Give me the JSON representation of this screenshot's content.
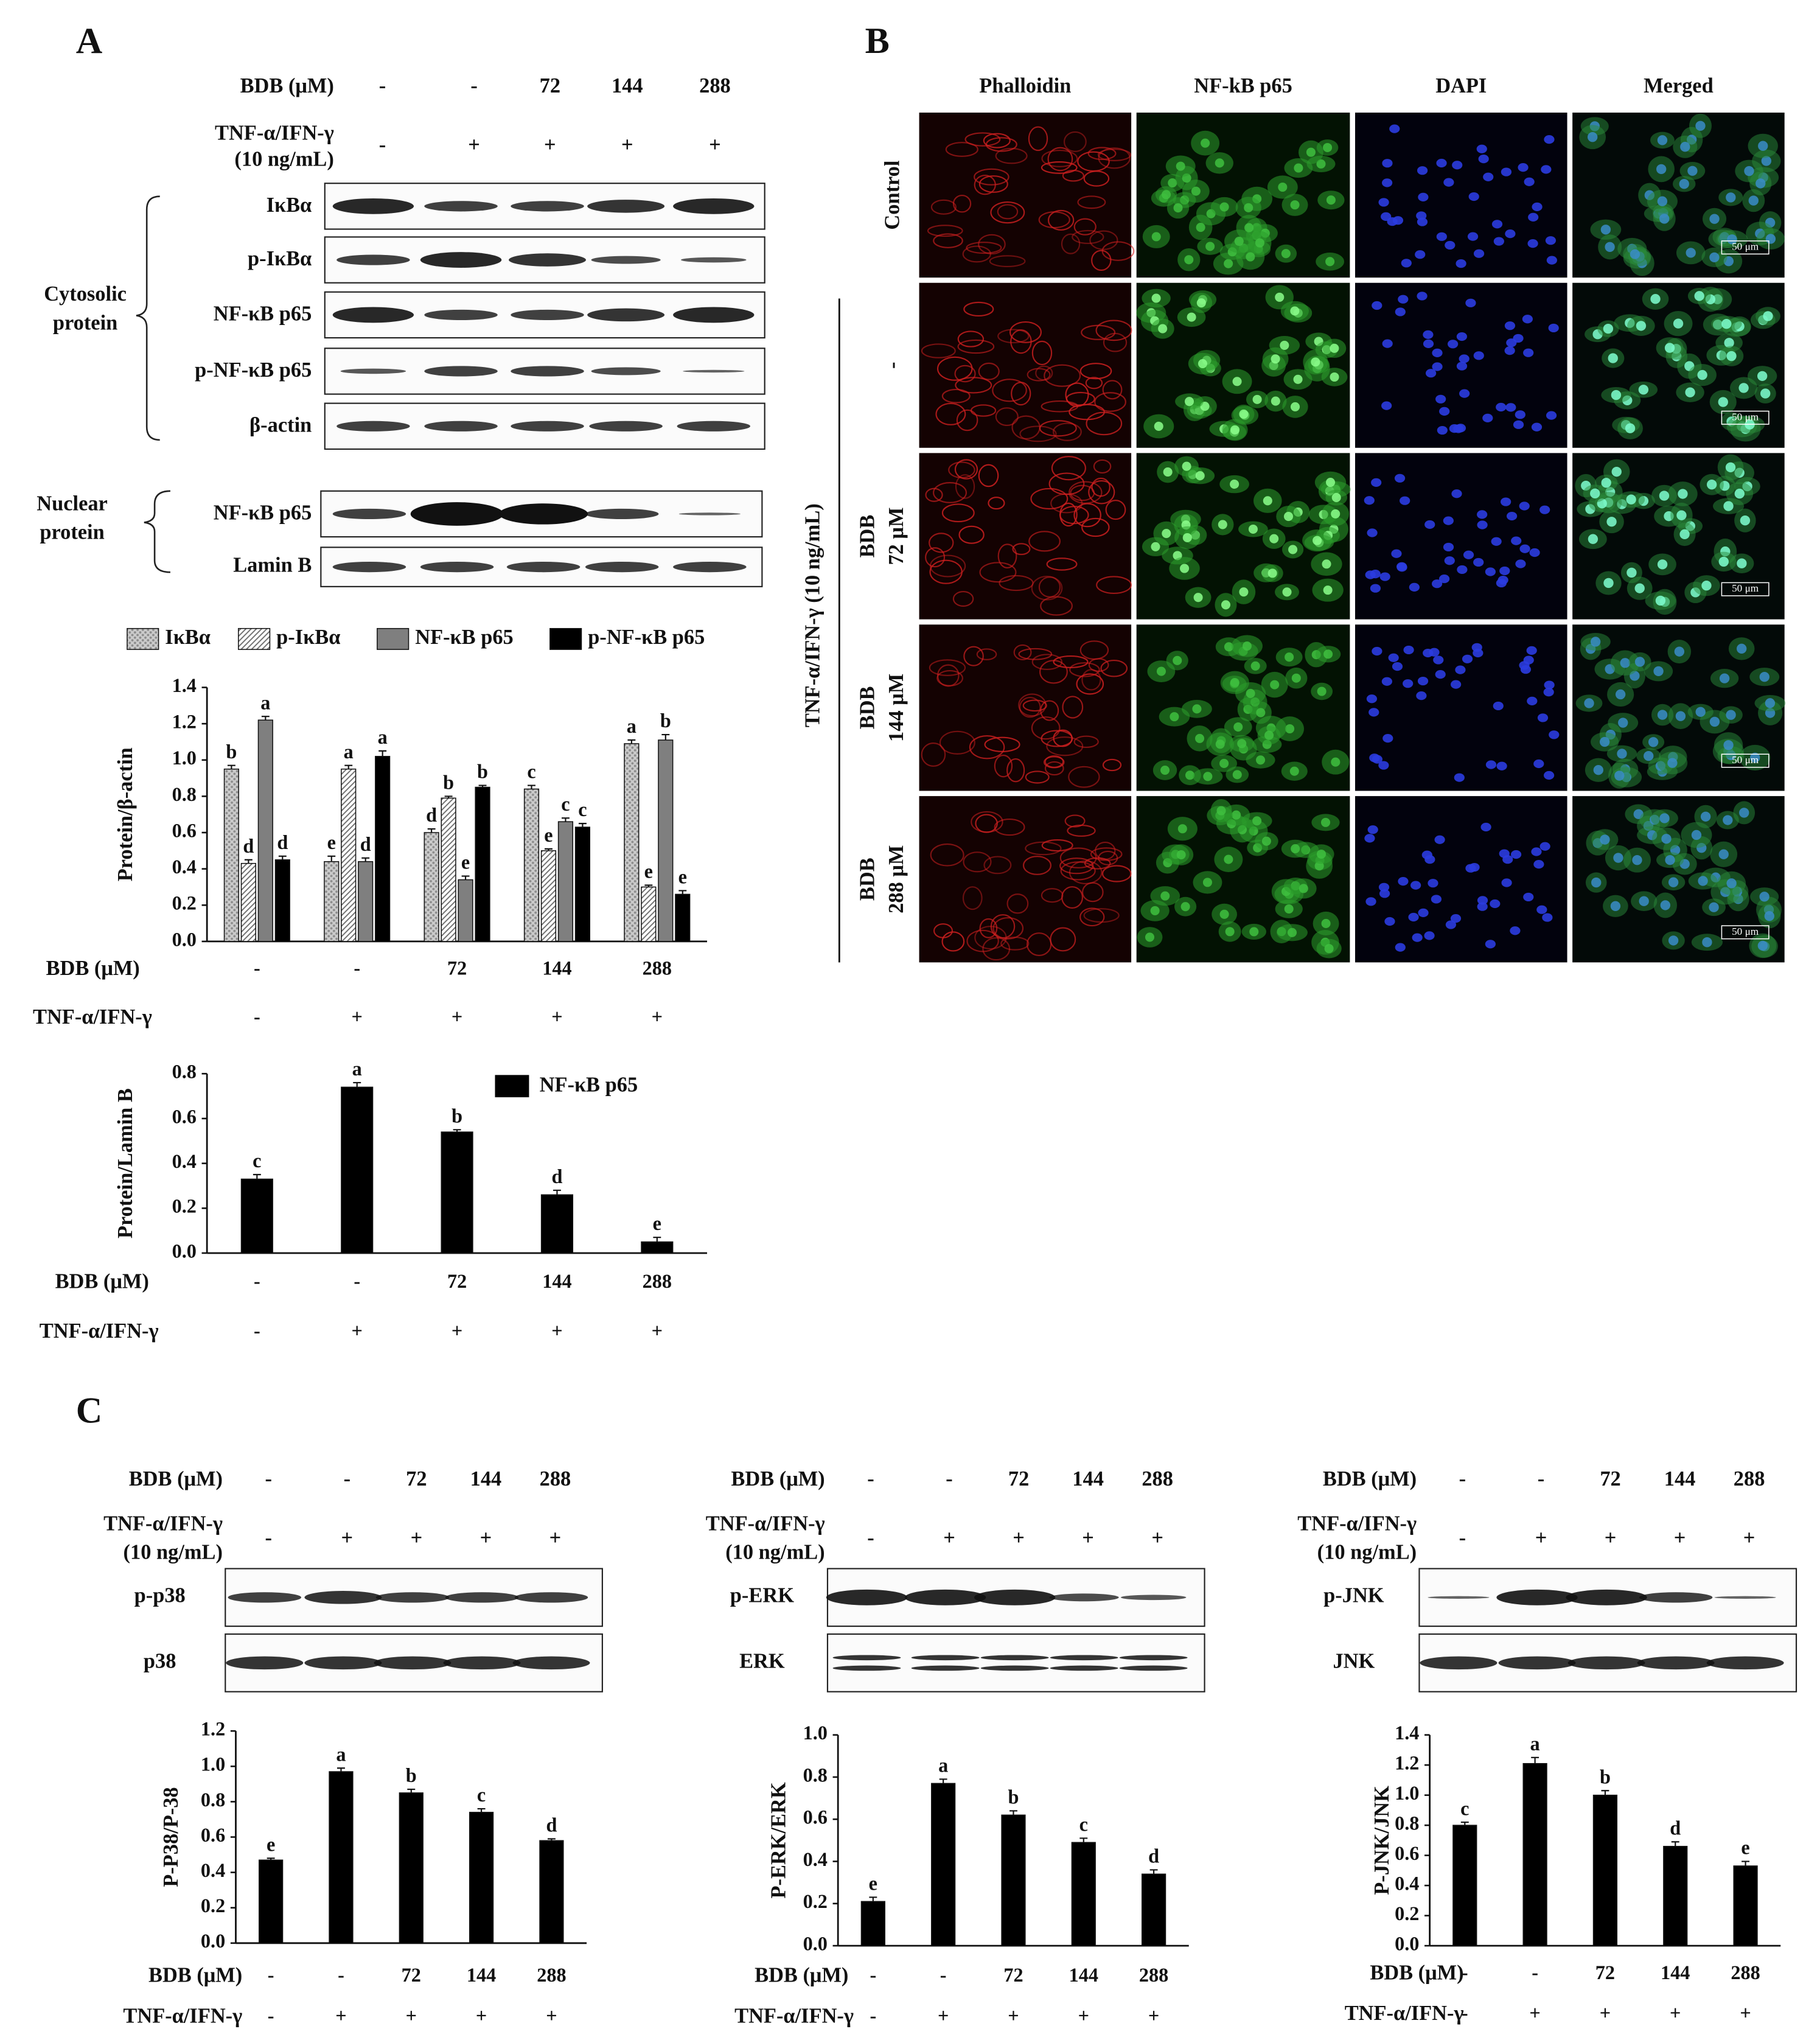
{
  "panel_a": {
    "label": "A",
    "blot_header": [
      {
        "label": "BDB (μM)",
        "values": [
          "-",
          "-",
          "72",
          "144",
          "288"
        ]
      },
      {
        "label": "TNF-α/IFN-γ",
        "label2": "(10 ng/mL)",
        "values": [
          "-",
          "+",
          "+",
          "+",
          "+"
        ]
      }
    ],
    "cytosolic": {
      "group": [
        "Cytosolic",
        "protein"
      ],
      "bands": [
        "IκBα",
        "p-IκBα",
        "NF-κB p65",
        "p-NF-κB p65",
        "β-actin"
      ]
    },
    "nuclear": {
      "group": [
        "Nuclear",
        "protein"
      ],
      "bands": [
        "NF-κB p65",
        "Lamin B"
      ]
    }
  },
  "panel_b": {
    "label": "B",
    "columns": [
      "Phalloidin",
      "NF-kB p65",
      "DAPI",
      "Merged"
    ],
    "rows": [
      [
        "Control"
      ],
      [
        "-"
      ],
      [
        "BDB",
        "72 μM"
      ],
      [
        "BDB",
        "144 μM"
      ],
      [
        "BDB",
        "288 μM"
      ]
    ],
    "treatment": "TNF-α/IFN-γ (10 ng/mL)",
    "scale_bar": "50 μm"
  },
  "panel_c": {
    "label": "C",
    "blots": [
      {
        "header": [
          {
            "label": "BDB (μM)",
            "values": [
              "-",
              "-",
              "72",
              "144",
              "288"
            ]
          },
          {
            "label": "TNF-α/IFN-γ",
            "label2": "(10 ng/mL)",
            "values": [
              "-",
              "+",
              "+",
              "+",
              "+"
            ]
          }
        ],
        "bands": [
          "p-p38",
          "p38"
        ]
      },
      {
        "header": [
          {
            "label": "BDB (μM)",
            "values": [
              "-",
              "-",
              "72",
              "144",
              "288"
            ]
          },
          {
            "label": "TNF-α/IFN-γ",
            "label2": "(10 ng/mL)",
            "values": [
              "-",
              "+",
              "+",
              "+",
              "+"
            ]
          }
        ],
        "bands": [
          "p-ERK",
          "ERK"
        ]
      },
      {
        "header": [
          {
            "label": "BDB (μM)",
            "values": [
              "-",
              "-",
              "72",
              "144",
              "288"
            ]
          },
          {
            "label": "TNF-α/IFN-γ",
            "label2": "(10 ng/mL)",
            "values": [
              "-",
              "+",
              "+",
              "+",
              "+"
            ]
          }
        ],
        "bands": [
          "p-JNK",
          "JNK"
        ]
      }
    ]
  },
  "chart_data": [
    {
      "type": "bar",
      "ylabel": "Protein/β-actin",
      "categories_label": "BDB (μM)",
      "categories": [
        "-",
        "-",
        "72",
        "144",
        "288"
      ],
      "treatment_label": "TNF-α/IFN-γ",
      "treatment": [
        "-",
        "+",
        "+",
        "+",
        "+"
      ],
      "ylim": [
        0,
        1.4
      ],
      "yticks": [
        {
          "value": 0,
          "label": "0.0"
        },
        0.2,
        0.4,
        0.6,
        0.8,
        {
          "value": 1,
          "label": "1.0"
        },
        1.2,
        1.4
      ],
      "series": [
        {
          "name": "IκBα",
          "color": "#8c8c8c",
          "pattern": "dots",
          "values": [
            0.95,
            0.44,
            0.6,
            0.84,
            1.09
          ],
          "errors": [
            0.02,
            0.03,
            0.02,
            0.02,
            0.02
          ],
          "letters": [
            "b",
            "e",
            "d",
            "c",
            "a"
          ]
        },
        {
          "name": "p-IκBα",
          "color": "#6e6e6e",
          "pattern": "hatch",
          "values": [
            0.43,
            0.95,
            0.79,
            0.5,
            0.3
          ],
          "errors": [
            0.02,
            0.02,
            0.01,
            0.01,
            0.01
          ],
          "letters": [
            "d",
            "a",
            "b",
            "e",
            "e"
          ]
        },
        {
          "name": "NF-κB p65",
          "color": "#7f7f7f",
          "values": [
            1.22,
            0.44,
            0.34,
            0.66,
            1.11
          ],
          "errors": [
            0.02,
            0.02,
            0.02,
            0.02,
            0.03
          ],
          "letters": [
            "a",
            "d",
            "e",
            "c",
            "b"
          ]
        },
        {
          "name": "p-NF-κB p65",
          "color": "#000000",
          "values": [
            0.45,
            1.02,
            0.85,
            0.63,
            0.26
          ],
          "errors": [
            0.02,
            0.03,
            0.01,
            0.02,
            0.02
          ],
          "letters": [
            "d",
            "a",
            "b",
            "c",
            "e"
          ]
        }
      ]
    },
    {
      "type": "bar",
      "ylabel": "Protein/Lamin B",
      "categories_label": "BDB (μM)",
      "categories": [
        "-",
        "-",
        "72",
        "144",
        "288"
      ],
      "treatment_label": "TNF-α/IFN-γ",
      "treatment": [
        "-",
        "+",
        "+",
        "+",
        "+"
      ],
      "ylim": [
        0,
        0.8
      ],
      "yticks": [
        {
          "value": 0,
          "label": "0.0"
        },
        0.2,
        0.4,
        0.6,
        0.8
      ],
      "series": [
        {
          "name": "NF-κB p65",
          "color": "#000000",
          "values": [
            0.33,
            0.74,
            0.54,
            0.26,
            0.05
          ],
          "errors": [
            0.02,
            0.02,
            0.01,
            0.02,
            0.02
          ],
          "letters": [
            "c",
            "a",
            "b",
            "d",
            "e"
          ]
        }
      ]
    },
    {
      "type": "bar",
      "ylabel": "P-P38/P-38",
      "categories_label": "BDB (μM)",
      "categories": [
        "-",
        "-",
        "72",
        "144",
        "288"
      ],
      "treatment_label": "TNF-α/IFN-γ",
      "treatment": [
        "-",
        "+",
        "+",
        "+",
        "+"
      ],
      "ylim": [
        0,
        1.2
      ],
      "yticks": [
        {
          "value": 0,
          "label": "0.0"
        },
        0.2,
        0.4,
        0.6,
        0.8,
        {
          "value": 1,
          "label": "1.0"
        },
        1.2
      ],
      "series": [
        {
          "color": "#000000",
          "values": [
            0.47,
            0.97,
            0.85,
            0.74,
            0.58
          ],
          "errors": [
            0.01,
            0.02,
            0.02,
            0.02,
            0.01
          ],
          "letters": [
            "e",
            "a",
            "b",
            "c",
            "d"
          ]
        }
      ]
    },
    {
      "type": "bar",
      "ylabel": "P-ERK/ERK",
      "categories_label": "BDB (μM)",
      "categories": [
        "-",
        "-",
        "72",
        "144",
        "288"
      ],
      "treatment_label": "TNF-α/IFN-γ",
      "treatment": [
        "-",
        "+",
        "+",
        "+",
        "+"
      ],
      "ylim": [
        0,
        1
      ],
      "yticks": [
        {
          "value": 0,
          "label": "0.0"
        },
        0.2,
        0.4,
        0.6,
        0.8,
        {
          "value": 1,
          "label": "1.0"
        }
      ],
      "series": [
        {
          "color": "#000000",
          "values": [
            0.21,
            0.77,
            0.62,
            0.49,
            0.34
          ],
          "errors": [
            0.02,
            0.02,
            0.02,
            0.02,
            0.02
          ],
          "letters": [
            "e",
            "a",
            "b",
            "c",
            "d"
          ]
        }
      ]
    },
    {
      "type": "bar",
      "ylabel": "P-JNK/JNK",
      "categories_label": "BDB (μM)",
      "categories": [
        "-",
        "-",
        "72",
        "144",
        "288"
      ],
      "treatment_label": "TNF-α/IFN-γ",
      "treatment": [
        "-",
        "+",
        "+",
        "+",
        "+"
      ],
      "ylim": [
        0,
        1.4
      ],
      "yticks": [
        {
          "value": 0,
          "label": "0.0"
        },
        0.2,
        0.4,
        0.6,
        0.8,
        {
          "value": 1,
          "label": "1.0"
        },
        1.2,
        1.4
      ],
      "series": [
        {
          "color": "#000000",
          "values": [
            0.8,
            1.21,
            1.0,
            0.66,
            0.53
          ],
          "errors": [
            0.02,
            0.04,
            0.03,
            0.03,
            0.03
          ],
          "letters": [
            "c",
            "a",
            "b",
            "d",
            "e"
          ]
        }
      ]
    }
  ]
}
